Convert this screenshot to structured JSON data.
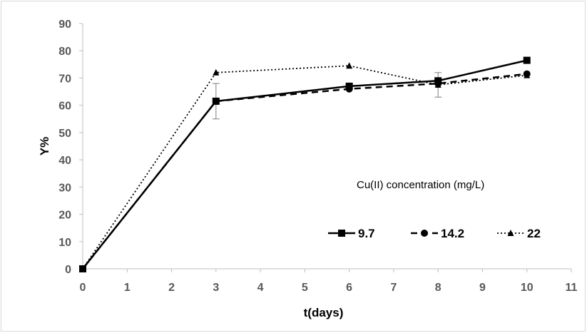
{
  "chart_data": {
    "type": "line",
    "title": "",
    "xlabel": "t(days)",
    "ylabel": "Y%",
    "xlim": [
      0,
      11
    ],
    "ylim": [
      0,
      90
    ],
    "x_ticks": [
      "0",
      "1",
      "2",
      "3",
      "4",
      "5",
      "6",
      "7",
      "8",
      "9",
      "10",
      "11"
    ],
    "y_ticks": [
      "0",
      "10",
      "20",
      "30",
      "40",
      "50",
      "60",
      "70",
      "80",
      "90"
    ],
    "grid": false,
    "legend_title": "Cu(II) concentration  (mg/L)",
    "legend_position": "bottom-right",
    "series": [
      {
        "name": "9.7",
        "marker": "square",
        "line_style": "solid",
        "color": "#000000",
        "points": [
          [
            0,
            0
          ],
          [
            3,
            61.5
          ],
          [
            6,
            67
          ],
          [
            8,
            69
          ],
          [
            10,
            76.5
          ]
        ],
        "error_bars": [
          {
            "x": 3,
            "low": 55,
            "high": 68
          },
          {
            "x": 8,
            "low": 63,
            "high": 72
          }
        ]
      },
      {
        "name": "14.2",
        "marker": "circle",
        "line_style": "dashed",
        "color": "#000000",
        "points": [
          [
            0,
            0
          ],
          [
            3,
            61.5
          ],
          [
            6,
            66
          ],
          [
            8,
            68
          ],
          [
            10,
            71.5
          ]
        ]
      },
      {
        "name": "22",
        "marker": "triangle",
        "line_style": "dotted",
        "color": "#000000",
        "points": [
          [
            0,
            0
          ],
          [
            3,
            72
          ],
          [
            6,
            74.5
          ],
          [
            8,
            67.5
          ],
          [
            10,
            71
          ]
        ]
      }
    ]
  }
}
